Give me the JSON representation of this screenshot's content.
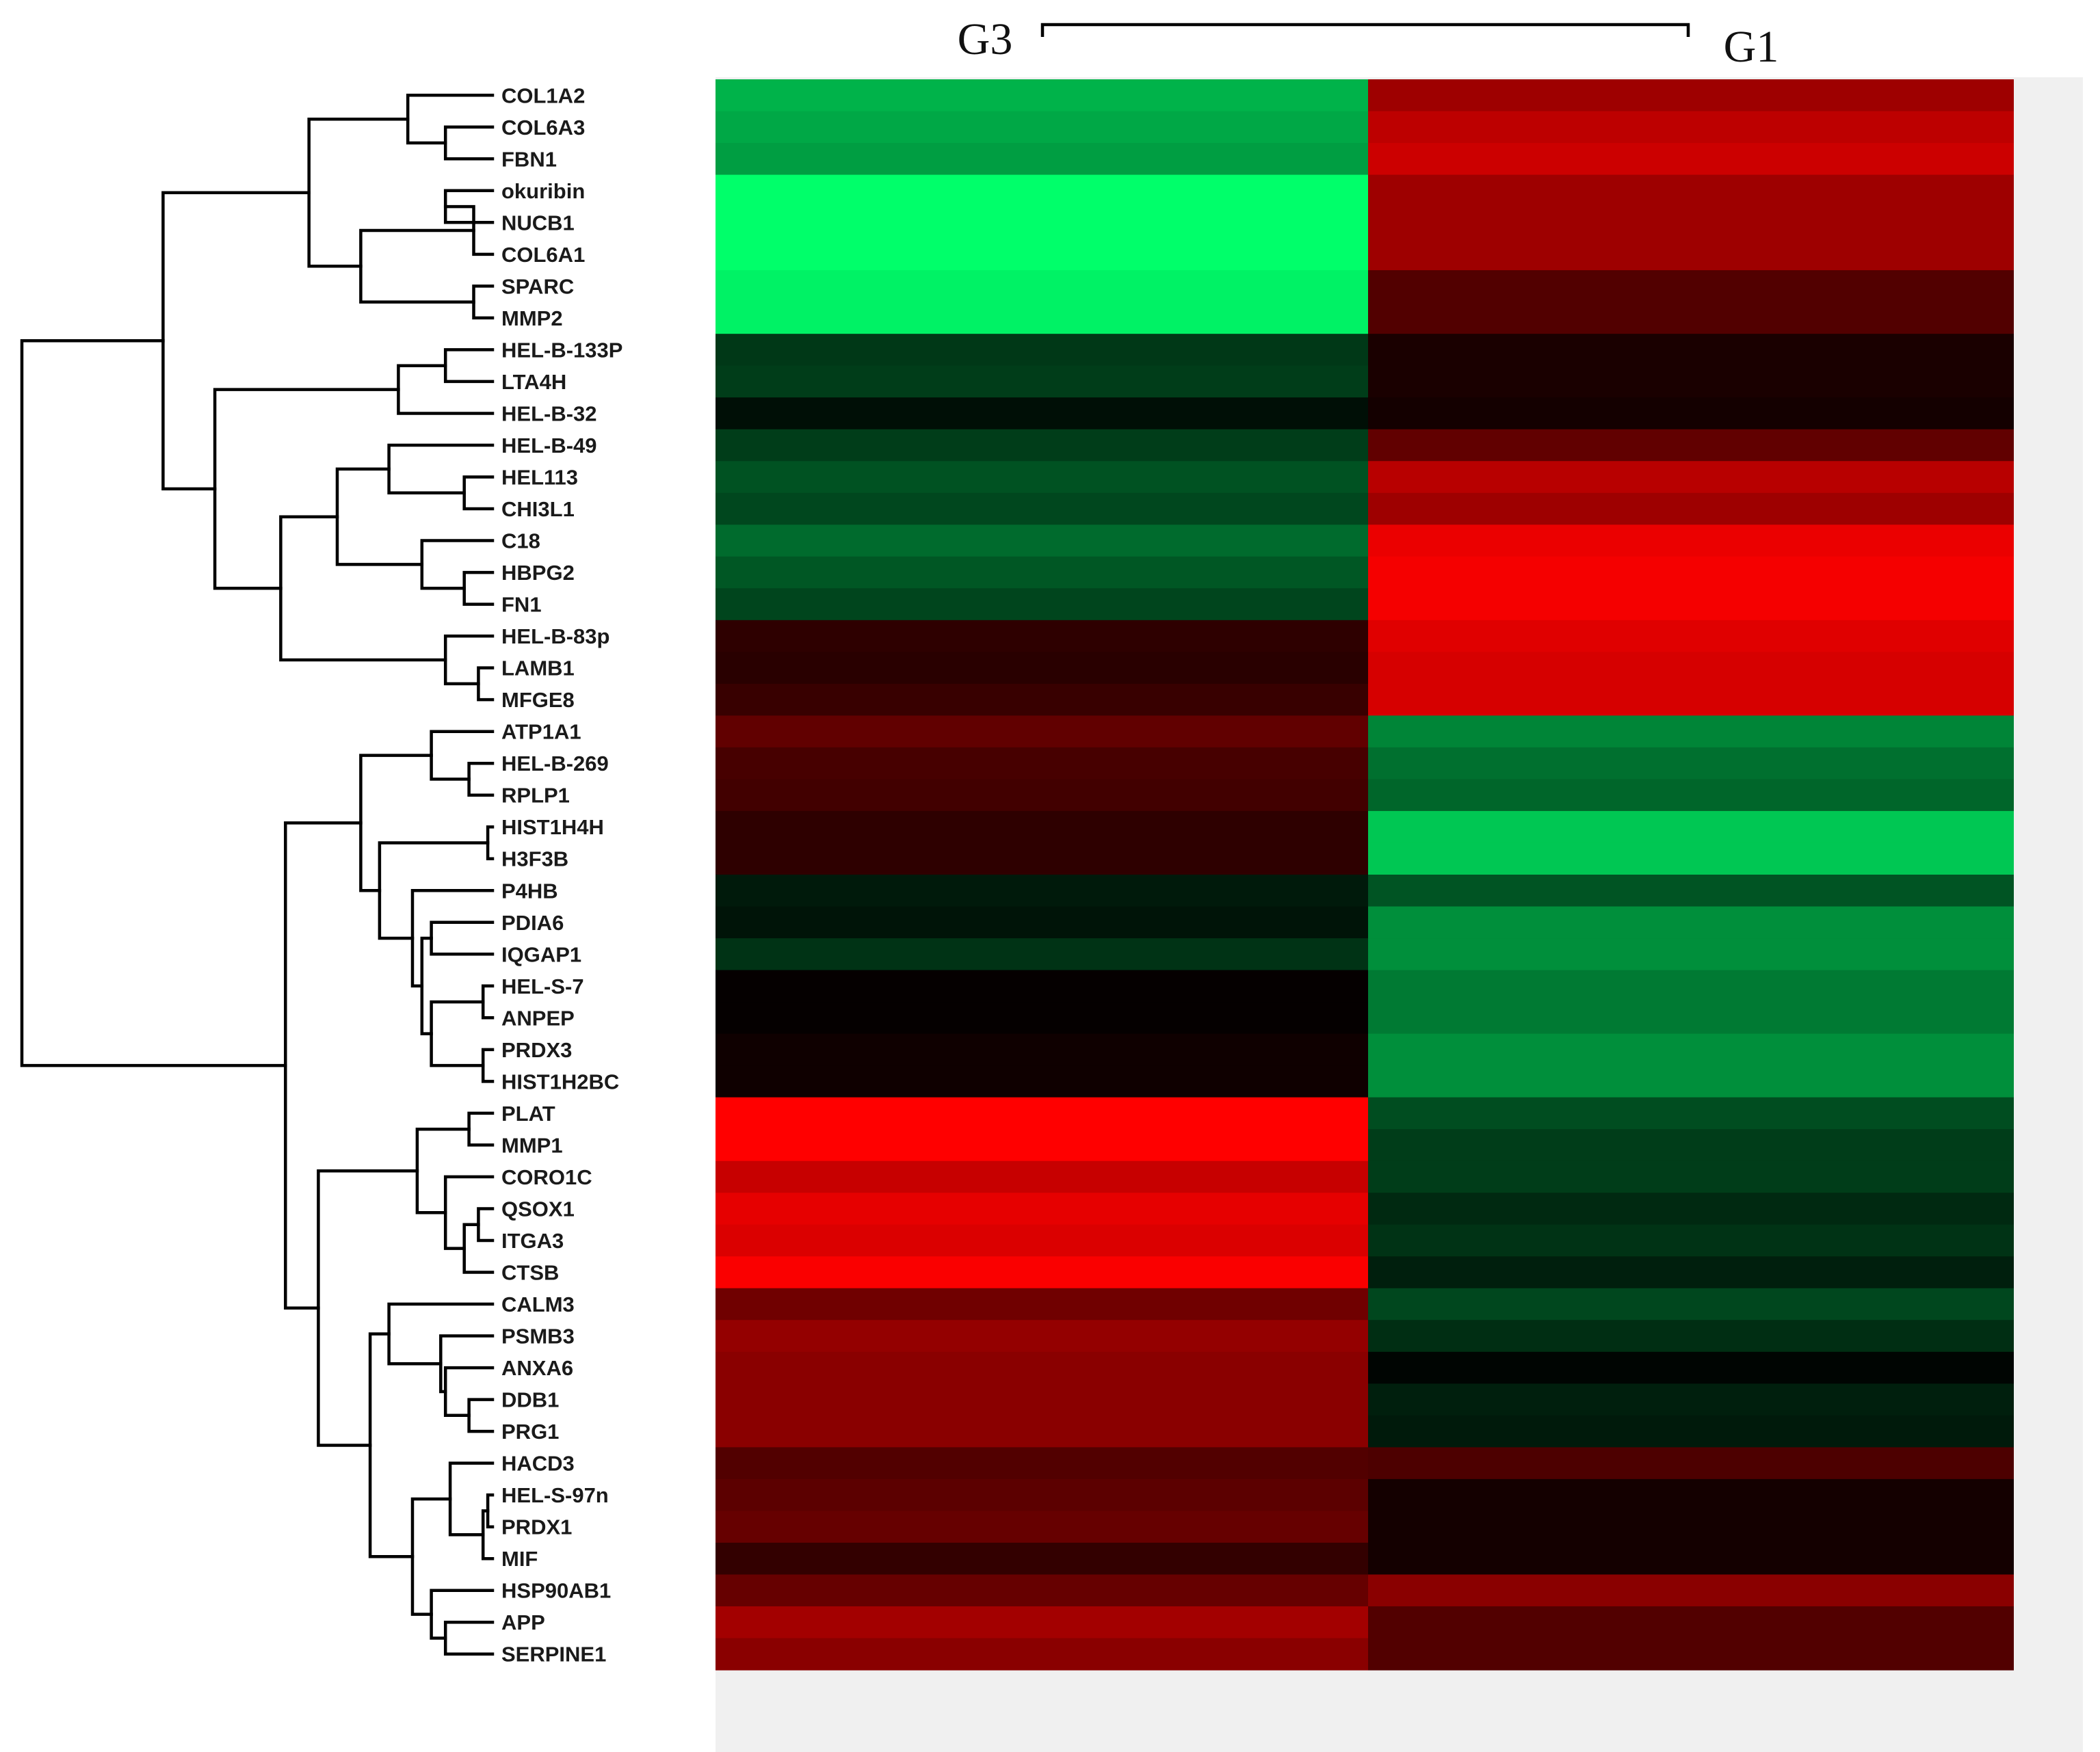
{
  "chart_data": {
    "type": "heatmap",
    "title": "",
    "columns": [
      "G3",
      "G1"
    ],
    "column_bracket": true,
    "color_scale": {
      "low": "#00ff6a",
      "mid": "#000000",
      "high": "#ff0000",
      "range": [
        -1,
        1
      ]
    },
    "background_panel": "#f0f0f0",
    "rows": [
      {
        "gene": "COL1A2",
        "values": [
          -0.7,
          0.62
        ]
      },
      {
        "gene": "COL6A3",
        "values": [
          -0.66,
          0.74
        ]
      },
      {
        "gene": "FBN1",
        "values": [
          -0.62,
          0.8
        ]
      },
      {
        "gene": "okuribin",
        "values": [
          -1.0,
          0.62
        ]
      },
      {
        "gene": "NUCB1",
        "values": [
          -1.0,
          0.62
        ]
      },
      {
        "gene": "COL6A1",
        "values": [
          -1.0,
          0.62
        ]
      },
      {
        "gene": "SPARC",
        "values": [
          -0.95,
          0.32
        ]
      },
      {
        "gene": "MMP2",
        "values": [
          -0.95,
          0.32
        ]
      },
      {
        "gene": "HEL-B-133P",
        "values": [
          -0.22,
          0.1
        ]
      },
      {
        "gene": "LTA4H",
        "values": [
          -0.24,
          0.1
        ]
      },
      {
        "gene": "HEL-B-32",
        "values": [
          -0.06,
          0.08
        ]
      },
      {
        "gene": "HEL-B-49",
        "values": [
          -0.24,
          0.38
        ]
      },
      {
        "gene": "HEL113",
        "values": [
          -0.32,
          0.72
        ]
      },
      {
        "gene": "CHI3L1",
        "values": [
          -0.28,
          0.62
        ]
      },
      {
        "gene": "C18",
        "values": [
          -0.42,
          0.92
        ]
      },
      {
        "gene": "HBPG2",
        "values": [
          -0.34,
          0.96
        ]
      },
      {
        "gene": "FN1",
        "values": [
          -0.27,
          0.96
        ]
      },
      {
        "gene": "HEL-B-83p",
        "values": [
          0.18,
          0.88
        ]
      },
      {
        "gene": "LAMB1",
        "values": [
          0.16,
          0.84
        ]
      },
      {
        "gene": "MFGE8",
        "values": [
          0.22,
          0.84
        ]
      },
      {
        "gene": "ATP1A1",
        "values": [
          0.38,
          -0.52
        ]
      },
      {
        "gene": "HEL-B-269",
        "values": [
          0.28,
          -0.44
        ]
      },
      {
        "gene": "RPLP1",
        "values": [
          0.26,
          -0.4
        ]
      },
      {
        "gene": "HIST1H4H",
        "values": [
          0.18,
          -0.78
        ]
      },
      {
        "gene": "H3F3B",
        "values": [
          0.18,
          -0.78
        ]
      },
      {
        "gene": "P4HB",
        "values": [
          -0.1,
          -0.33
        ]
      },
      {
        "gene": "PDIA6",
        "values": [
          -0.08,
          -0.56
        ]
      },
      {
        "gene": "IQGAP1",
        "values": [
          -0.2,
          -0.56
        ]
      },
      {
        "gene": "HEL-S-7",
        "values": [
          0.02,
          -0.48
        ]
      },
      {
        "gene": "ANPEP",
        "values": [
          0.02,
          -0.48
        ]
      },
      {
        "gene": "PRDX3",
        "values": [
          0.06,
          -0.56
        ]
      },
      {
        "gene": "HIST1H2BC",
        "values": [
          0.06,
          -0.56
        ]
      },
      {
        "gene": "PLAT",
        "values": [
          1.0,
          -0.3
        ]
      },
      {
        "gene": "MMP1",
        "values": [
          1.0,
          -0.24
        ]
      },
      {
        "gene": "CORO1C",
        "values": [
          0.78,
          -0.24
        ]
      },
      {
        "gene": "QSOX1",
        "values": [
          0.9,
          -0.16
        ]
      },
      {
        "gene": "ITGA3",
        "values": [
          0.86,
          -0.2
        ]
      },
      {
        "gene": "CTSB",
        "values": [
          0.98,
          -0.12
        ]
      },
      {
        "gene": "CALM3",
        "values": [
          0.44,
          -0.28
        ]
      },
      {
        "gene": "PSMB3",
        "values": [
          0.58,
          -0.18
        ]
      },
      {
        "gene": "ANXA6",
        "values": [
          0.54,
          -0.02
        ]
      },
      {
        "gene": "DDB1",
        "values": [
          0.54,
          -0.12
        ]
      },
      {
        "gene": "PRG1",
        "values": [
          0.54,
          -0.1
        ]
      },
      {
        "gene": "HACD3",
        "values": [
          0.32,
          0.3
        ]
      },
      {
        "gene": "HEL-S-97n",
        "values": [
          0.36,
          0.08
        ]
      },
      {
        "gene": "PRDX1",
        "values": [
          0.4,
          0.08
        ]
      },
      {
        "gene": "MIF",
        "values": [
          0.2,
          0.08
        ]
      },
      {
        "gene": "HSP90AB1",
        "values": [
          0.4,
          0.54
        ]
      },
      {
        "gene": "APP",
        "values": [
          0.64,
          0.32
        ]
      },
      {
        "gene": "SERPINE1",
        "values": [
          0.54,
          0.32
        ]
      }
    ],
    "dendrogram": {
      "type": "hierarchical",
      "leaf_order": "rows",
      "merges": [
        [
          [
            1
          ],
          [
            2
          ],
          0.1
        ],
        [
          [
            3
          ],
          [
            4
          ],
          0.1
        ],
        [
          [
            0
          ],
          [
            1,
            2
          ],
          0.18
        ],
        [
          [
            5
          ],
          [
            3,
            4
          ],
          0.04
        ],
        [
          [
            6
          ],
          [
            7
          ],
          0.04
        ],
        [
          [
            3,
            4,
            5
          ],
          [
            6,
            7
          ],
          0.28
        ],
        [
          [
            0,
            1,
            2
          ],
          [
            3,
            4,
            5,
            6,
            7
          ],
          0.39
        ],
        [
          [
            8
          ],
          [
            9
          ],
          0.1
        ],
        [
          [
            8,
            9
          ],
          [
            10
          ],
          0.2
        ],
        [
          [
            12
          ],
          [
            13
          ],
          0.06
        ],
        [
          [
            11
          ],
          [
            12,
            13
          ],
          0.22
        ],
        [
          [
            15
          ],
          [
            16
          ],
          0.06
        ],
        [
          [
            14
          ],
          [
            15,
            16
          ],
          0.15
        ],
        [
          [
            11,
            12,
            13
          ],
          [
            14,
            15,
            16
          ],
          0.33
        ],
        [
          [
            18
          ],
          [
            19
          ],
          0.03
        ],
        [
          [
            17
          ],
          [
            18,
            19
          ],
          0.1
        ],
        [
          [
            11,
            12,
            13,
            14,
            15,
            16
          ],
          [
            17,
            18,
            19
          ],
          0.45
        ],
        [
          [
            8,
            9,
            10
          ],
          [
            11,
            12,
            13,
            14,
            15,
            16,
            17,
            18,
            19
          ],
          0.59
        ],
        [
          [
            0,
            1,
            2,
            3,
            4,
            5,
            6,
            7
          ],
          [
            8,
            9,
            10,
            11,
            12,
            13,
            14,
            15,
            16,
            17,
            18,
            19
          ],
          0.7
        ],
        [
          [
            21
          ],
          [
            22
          ],
          0.05
        ],
        [
          [
            20
          ],
          [
            21,
            22
          ],
          0.13
        ],
        [
          [
            23
          ],
          [
            24
          ],
          0.01
        ],
        [
          [
            26
          ],
          [
            27
          ],
          0.13
        ],
        [
          [
            28
          ],
          [
            29
          ],
          0.02
        ],
        [
          [
            30
          ],
          [
            31
          ],
          0.02
        ],
        [
          [
            28,
            29
          ],
          [
            30,
            31
          ],
          0.13
        ],
        [
          [
            26,
            27
          ],
          [
            28,
            29,
            30,
            31
          ],
          0.15
        ],
        [
          [
            25
          ],
          [
            26,
            27,
            28,
            29,
            30,
            31
          ],
          0.17
        ],
        [
          [
            23,
            24
          ],
          [
            25,
            26,
            27,
            28,
            29,
            30,
            31
          ],
          0.24
        ],
        [
          [
            20,
            21,
            22
          ],
          [
            23,
            24,
            25,
            26,
            27,
            28,
            29,
            30,
            31
          ],
          0.28
        ],
        [
          [
            32
          ],
          [
            33
          ],
          0.05
        ],
        [
          [
            35
          ],
          [
            36
          ],
          0.03
        ],
        [
          [
            35,
            36
          ],
          [
            37
          ],
          0.06
        ],
        [
          [
            34
          ],
          [
            35,
            36,
            37
          ],
          0.1
        ],
        [
          [
            32,
            33
          ],
          [
            34,
            35,
            36,
            37
          ],
          0.16
        ],
        [
          [
            41
          ],
          [
            42
          ],
          0.05
        ],
        [
          [
            40
          ],
          [
            41,
            42
          ],
          0.1
        ],
        [
          [
            39
          ],
          [
            40,
            41,
            42
          ],
          0.11
        ],
        [
          [
            38
          ],
          [
            39,
            40,
            41,
            42
          ],
          0.22
        ],
        [
          [
            44
          ],
          [
            45
          ],
          0.01
        ],
        [
          [
            44,
            45
          ],
          [
            46
          ],
          0.02
        ],
        [
          [
            43
          ],
          [
            44,
            45,
            46
          ],
          0.09
        ],
        [
          [
            48
          ],
          [
            49
          ],
          0.1
        ],
        [
          [
            47
          ],
          [
            48,
            49
          ],
          0.13
        ],
        [
          [
            43,
            44,
            45,
            46
          ],
          [
            47,
            48,
            49
          ],
          0.17
        ],
        [
          [
            38,
            39,
            40,
            41,
            42
          ],
          [
            43,
            44,
            45,
            46,
            47,
            48,
            49
          ],
          0.26
        ],
        [
          [
            32,
            33,
            34,
            35,
            36,
            37
          ],
          [
            38,
            39,
            40,
            41,
            42,
            43,
            44,
            45,
            46,
            47,
            48,
            49
          ],
          0.37
        ],
        [
          [
            20,
            21,
            22,
            23,
            24,
            25,
            26,
            27,
            28,
            29,
            30,
            31
          ],
          [
            32,
            33,
            34,
            35,
            36,
            37,
            38,
            39,
            40,
            41,
            42,
            43,
            44,
            45,
            46,
            47,
            48,
            49
          ],
          0.44
        ],
        [
          [
            0,
            1,
            2,
            3,
            4,
            5,
            6,
            7,
            8,
            9,
            10,
            11,
            12,
            13,
            14,
            15,
            16,
            17,
            18,
            19
          ],
          [
            20,
            21,
            22,
            23,
            24,
            25,
            26,
            27,
            28,
            29,
            30,
            31,
            32,
            33,
            34,
            35,
            36,
            37,
            38,
            39,
            40,
            41,
            42,
            43,
            44,
            45,
            46,
            47,
            48,
            49
          ],
          1.0
        ]
      ]
    }
  }
}
